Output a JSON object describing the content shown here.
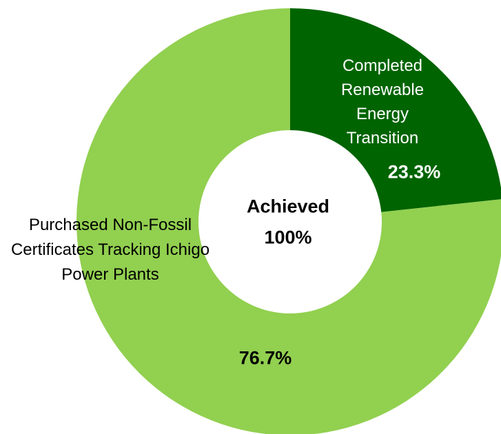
{
  "chart_data": {
    "type": "donut",
    "categories": [
      "Completed Renewable Energy Transition",
      "Purchased Non-Fossil Certificates Tracking Ichigo Power Plants"
    ],
    "values": [
      23.3,
      76.7
    ],
    "value_labels": [
      "23.3%",
      "76.7%"
    ],
    "colors": [
      "#006400",
      "#92d050"
    ],
    "center_label": "Achieved",
    "center_value": "100%"
  }
}
